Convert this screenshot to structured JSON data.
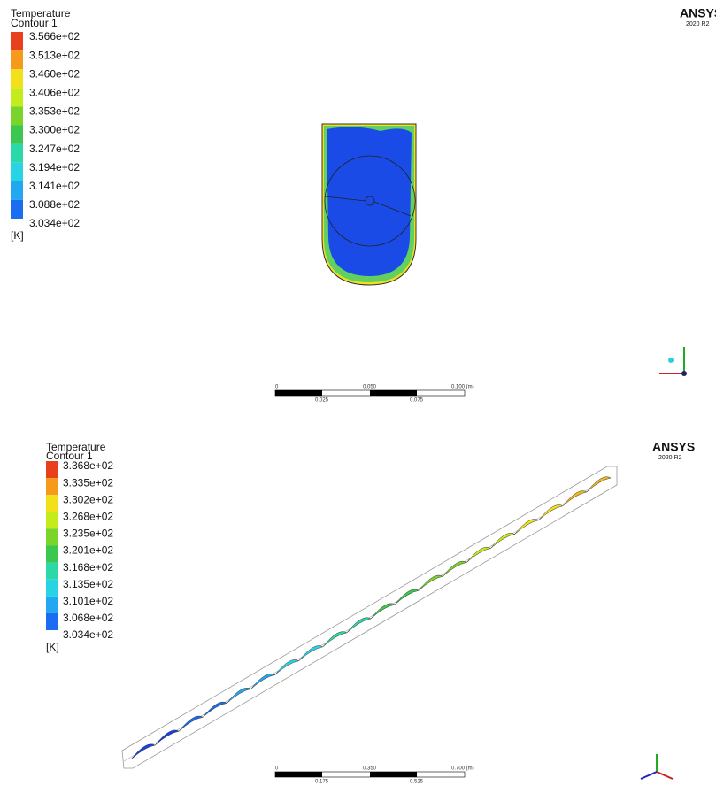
{
  "panels": [
    {
      "legend": {
        "title": [
          "Temperature",
          "Contour 1"
        ],
        "labels": [
          "3.566e+02",
          "3.513e+02",
          "3.460e+02",
          "3.406e+02",
          "3.353e+02",
          "3.300e+02",
          "3.247e+02",
          "3.194e+02",
          "3.141e+02",
          "3.088e+02",
          "3.034e+02"
        ],
        "unit": "[K]"
      },
      "logo": {
        "name": "ANSYS",
        "version": "2020 R2"
      },
      "scale": {
        "top": [
          "0",
          "0.050",
          "0.100 (m)"
        ],
        "bottom": [
          "0.025",
          "0.075"
        ]
      }
    },
    {
      "legend": {
        "title": [
          "Temperature",
          "Contour 1"
        ],
        "labels": [
          "3.368e+02",
          "3.335e+02",
          "3.302e+02",
          "3.268e+02",
          "3.235e+02",
          "3.201e+02",
          "3.168e+02",
          "3.135e+02",
          "3.101e+02",
          "3.068e+02",
          "3.034e+02"
        ],
        "unit": "[K]"
      },
      "logo": {
        "name": "ANSYS",
        "version": "2020 R2"
      },
      "scale": {
        "top": [
          "0",
          "0.350",
          "0.700 (m)"
        ],
        "bottom": [
          "0.175",
          "0.525"
        ]
      }
    }
  ]
}
